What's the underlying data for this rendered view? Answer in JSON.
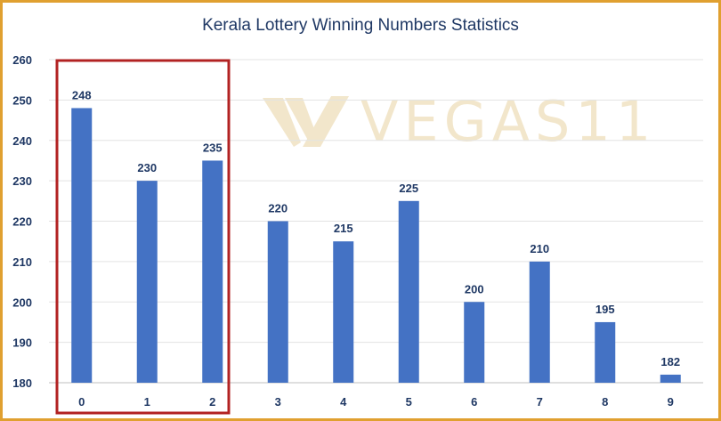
{
  "theme": {
    "bar_color": "#4472c4",
    "text_color": "#1f3864",
    "highlight_color": "#b22222",
    "border_color": "#e0a030",
    "watermark_color": "#e8d3a2"
  },
  "watermark": "VEGAS11",
  "chart_data": {
    "type": "bar",
    "title": "Kerala Lottery Winning Numbers Statistics",
    "xlabel": "",
    "ylabel": "",
    "categories": [
      "0",
      "1",
      "2",
      "3",
      "4",
      "5",
      "6",
      "7",
      "8",
      "9"
    ],
    "values": [
      248,
      230,
      235,
      220,
      215,
      225,
      200,
      210,
      195,
      182
    ],
    "ylim": [
      180,
      260
    ],
    "yticks": [
      260,
      250,
      240,
      230,
      220,
      210,
      200,
      190,
      180
    ],
    "grid": true,
    "legend": "none",
    "highlight_categories": [
      "0",
      "1",
      "2"
    ]
  }
}
